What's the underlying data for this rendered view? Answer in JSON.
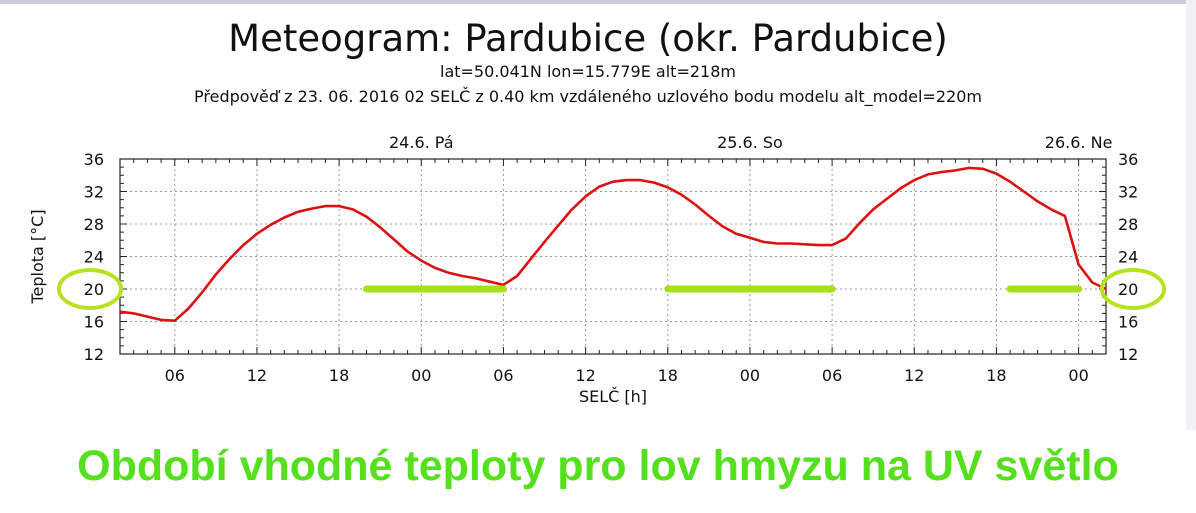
{
  "header": {
    "title": "Meteogram: Pardubice (okr. Pardubice)",
    "subtitle": "lat=50.041N lon=15.779E alt=218m",
    "forecast_line": "Předpověď z 23. 06. 2016 02 SELČ z 0.40 km vzdáleného uzlového bodu modelu alt_model=220m"
  },
  "chart_data": {
    "type": "line",
    "xlabel": "SELČ [h]",
    "ylabel": "Teplota [°C]",
    "ylim": [
      12,
      36
    ],
    "yticks": [
      12,
      16,
      20,
      24,
      28,
      32,
      36
    ],
    "xlim_hours": [
      2,
      74
    ],
    "xticks": [
      {
        "h": 6,
        "label": "06"
      },
      {
        "h": 12,
        "label": "12"
      },
      {
        "h": 18,
        "label": "18"
      },
      {
        "h": 24,
        "label": "00"
      },
      {
        "h": 30,
        "label": "06"
      },
      {
        "h": 36,
        "label": "12"
      },
      {
        "h": 42,
        "label": "18"
      },
      {
        "h": 48,
        "label": "00"
      },
      {
        "h": 54,
        "label": "06"
      },
      {
        "h": 60,
        "label": "12"
      },
      {
        "h": 66,
        "label": "18"
      },
      {
        "h": 72,
        "label": "00"
      }
    ],
    "day_labels": [
      {
        "h": 24,
        "label": "24.6. Pá"
      },
      {
        "h": 48,
        "label": "25.6. So"
      },
      {
        "h": 72,
        "label": "26.6. Ne"
      }
    ],
    "grid": true,
    "series": [
      {
        "color": "#dd1111",
        "x": [
          2,
          3,
          4,
          5,
          6,
          7,
          8,
          9,
          10,
          11,
          12,
          13,
          14,
          15,
          16,
          17,
          18,
          19,
          20,
          21,
          22,
          23,
          24,
          25,
          26,
          27,
          28,
          29,
          30,
          31,
          32,
          33,
          34,
          35,
          36,
          37,
          38,
          39,
          40,
          41,
          42,
          43,
          44,
          45,
          46,
          47,
          48,
          49,
          50,
          51,
          52,
          53,
          54,
          55,
          56,
          57,
          58,
          59,
          60,
          61,
          62,
          63,
          64,
          65,
          66,
          67,
          68,
          69,
          70,
          71,
          72,
          73,
          74
        ],
        "y": [
          17.2,
          17.0,
          16.6,
          16.2,
          16.1,
          17.6,
          19.6,
          21.8,
          23.7,
          25.4,
          26.8,
          27.9,
          28.8,
          29.5,
          29.9,
          30.2,
          30.2,
          29.8,
          28.9,
          27.6,
          26.1,
          24.6,
          23.5,
          22.6,
          22.0,
          21.6,
          21.3,
          20.9,
          20.5,
          21.6,
          23.7,
          25.8,
          27.8,
          29.8,
          31.4,
          32.6,
          33.2,
          33.4,
          33.4,
          33.1,
          32.5,
          31.6,
          30.4,
          29.0,
          27.7,
          26.8,
          26.3,
          25.8,
          25.6,
          25.6,
          25.5,
          25.4,
          25.4,
          26.2,
          28.1,
          29.8,
          31.1,
          32.4,
          33.4,
          34.1,
          34.4,
          34.6,
          34.9,
          34.8,
          34.2,
          33.2,
          32.0,
          30.8,
          29.8,
          29.0,
          23.0,
          20.8,
          20.0
        ]
      }
    ],
    "highlight_bars": [
      {
        "x": [
          20,
          30
        ],
        "y": 20
      },
      {
        "x": [
          42,
          54
        ],
        "y": 20
      },
      {
        "x": [
          67,
          72
        ],
        "y": 20
      }
    ],
    "highlight_color": "#a6e01a",
    "circled_tick_value": "20",
    "circle_color": "#b7e221"
  },
  "caption": "Období vhodné teploty pro lov hmyzu na UV světlo"
}
